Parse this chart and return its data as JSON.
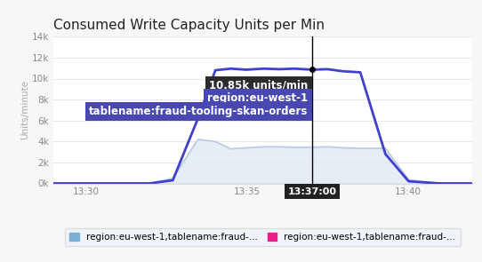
{
  "title": "Consumed Write Capacity Units per Min",
  "ylabel": "Units/minute",
  "background_color": "#f7f7f7",
  "plot_bg_color": "#ffffff",
  "grid_color": "#e8e8e8",
  "xlim_min": 13.483,
  "xlim_max": 13.7,
  "ylim_min": 0,
  "ylim_max": 14000,
  "yticks": [
    0,
    2000,
    4000,
    6000,
    8000,
    10000,
    12000,
    14000
  ],
  "ytick_labels": [
    "0k",
    "2k",
    "4k",
    "6k",
    "8k",
    "10k",
    "12k",
    "14k"
  ],
  "xtick_positions": [
    13.5,
    13.5833,
    13.6667
  ],
  "xtick_labels": [
    "13:30",
    "13:35",
    "13:40"
  ],
  "cursor_x": 13.617,
  "cursor_label": "13:37:00",
  "tooltip_value": "10.85k units/min",
  "tooltip_region": "region:eu-west-1",
  "tooltip_table": "tablename:fraud-tooling-skan-orders",
  "series1_color": "#4040cc",
  "series2_color": "#b8cce4",
  "legend1_color": "#7bafd4",
  "legend2_color": "#e91e8c",
  "legend1_label": "region:eu-west-1,tablename:fraud-...",
  "legend2_label": "region:eu-west-1,tablename:fraud-...",
  "series1_x": [
    13.483,
    13.5,
    13.533,
    13.545,
    13.558,
    13.567,
    13.575,
    13.583,
    13.592,
    13.6,
    13.608,
    13.617,
    13.625,
    13.633,
    13.642,
    13.655,
    13.667,
    13.683,
    13.7
  ],
  "series1_y": [
    0,
    0,
    0,
    300,
    6200,
    10800,
    10950,
    10850,
    10950,
    10900,
    10950,
    10850,
    10900,
    10700,
    10600,
    2800,
    200,
    0,
    0
  ],
  "series2_x": [
    13.483,
    13.5,
    13.533,
    13.545,
    13.558,
    13.567,
    13.575,
    13.583,
    13.592,
    13.6,
    13.608,
    13.617,
    13.625,
    13.633,
    13.642,
    13.655,
    13.667,
    13.683,
    13.7
  ],
  "series2_y": [
    0,
    0,
    0,
    500,
    4200,
    4000,
    3300,
    3400,
    3500,
    3500,
    3450,
    3450,
    3500,
    3400,
    3350,
    3350,
    350,
    0,
    0
  ],
  "tooltip_color_dark": "#2b2b2b",
  "tooltip_color_purple": "#4848b0"
}
